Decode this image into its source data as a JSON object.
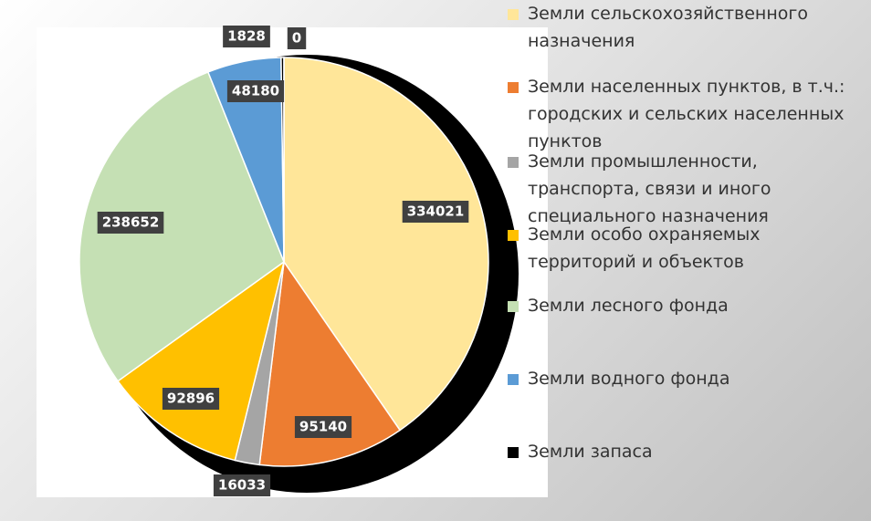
{
  "chart_data": {
    "type": "pie",
    "categories": [
      "Земли  сельскохозяйственного назначения",
      "Земли населенных пунктов, в т.ч.: городских и сельских населенных пунктов",
      "Земли промышленности, транспорта, связи и иного специального назначения",
      "Земли особо охраняемых территорий и объектов",
      "Земли лесного фонда",
      "Земли водного фонда",
      "Земли запаса",
      null
    ],
    "values": [
      334021,
      95140,
      16033,
      92896,
      238652,
      48180,
      1828,
      0
    ],
    "colors": [
      "#FFE699",
      "#ED7D31",
      "#A5A5A5",
      "#FFC000",
      "#C5E0B4",
      "#5B9BD5",
      "#000000",
      "#000000"
    ],
    "legend": "right"
  }
}
